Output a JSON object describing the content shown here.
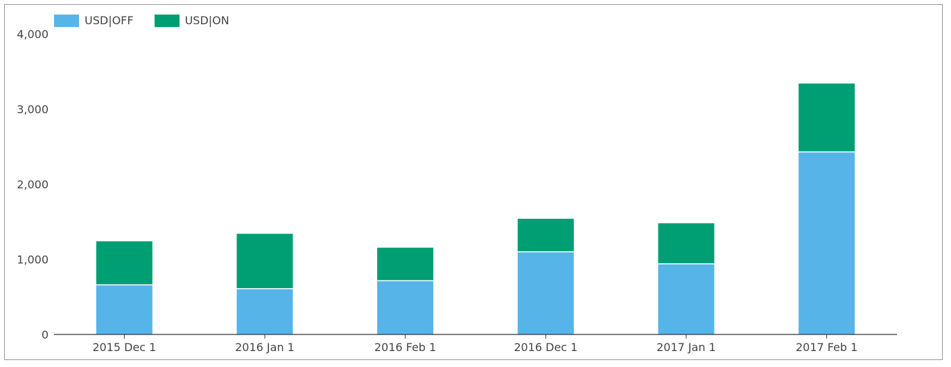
{
  "chart_data": {
    "type": "bar",
    "stacked": true,
    "categories": [
      "2015 Dec 1",
      "2016 Jan 1",
      "2016 Feb 1",
      "2016 Dec 1",
      "2017 Jan 1",
      "2017 Feb 1"
    ],
    "series": [
      {
        "name": "USD|OFF",
        "color": "#56b4e9",
        "values": [
          660,
          610,
          715,
          1100,
          940,
          2430
        ]
      },
      {
        "name": "USD|ON",
        "color": "#009e73",
        "values": [
          580,
          730,
          440,
          440,
          540,
          910
        ]
      }
    ],
    "ylim": [
      0,
      4000
    ],
    "yticks": [
      0,
      1000,
      2000,
      3000,
      4000
    ],
    "ytick_labels": [
      "0",
      "1,000",
      "2,000",
      "3,000",
      "4,000"
    ],
    "grid": false,
    "legend_position": "top-left",
    "title": "",
    "xlabel": "",
    "ylabel": ""
  }
}
